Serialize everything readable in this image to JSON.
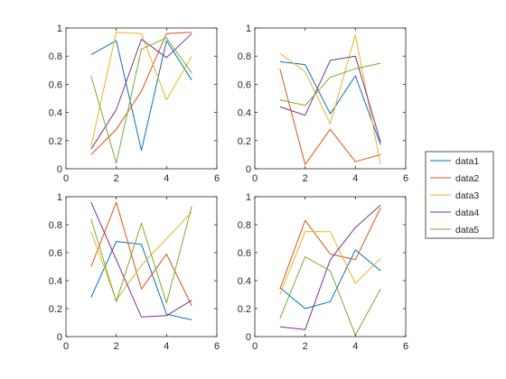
{
  "colors": {
    "data1": "#0072BD",
    "data2": "#D95319",
    "data3": "#EDB120",
    "data4": "#7E2F8E",
    "data5": "#77AC30",
    "axes": "#262626",
    "background": "#ffffff"
  },
  "legend": {
    "placement": "right-center",
    "entries": [
      "data1",
      "data2",
      "data3",
      "data4",
      "data5"
    ]
  },
  "chart_data": [
    {
      "type": "line",
      "panel": "top-left",
      "title": "",
      "xlabel": "",
      "ylabel": "",
      "xlim": [
        0,
        6
      ],
      "ylim": [
        0,
        1
      ],
      "xticks": [
        "0",
        "2",
        "4",
        "6"
      ],
      "yticks": [
        "0",
        "0.2",
        "0.4",
        "0.6",
        "0.8",
        "1"
      ],
      "grid": false,
      "x": [
        1,
        2,
        3,
        4,
        5
      ],
      "series": [
        {
          "name": "data1",
          "values": [
            0.81,
            0.91,
            0.13,
            0.91,
            0.63
          ]
        },
        {
          "name": "data2",
          "values": [
            0.1,
            0.28,
            0.55,
            0.96,
            0.97
          ]
        },
        {
          "name": "data3",
          "values": [
            0.16,
            0.97,
            0.96,
            0.49,
            0.8
          ]
        },
        {
          "name": "data4",
          "values": [
            0.14,
            0.42,
            0.92,
            0.79,
            0.96
          ]
        },
        {
          "name": "data5",
          "values": [
            0.66,
            0.04,
            0.85,
            0.93,
            0.68
          ]
        }
      ]
    },
    {
      "type": "line",
      "panel": "top-right",
      "title": "",
      "xlabel": "",
      "ylabel": "",
      "xlim": [
        0,
        6
      ],
      "ylim": [
        0,
        1
      ],
      "xticks": [
        "0",
        "2",
        "4",
        "6"
      ],
      "yticks": [
        "0",
        "0.2",
        "0.4",
        "0.6",
        "0.8",
        "1"
      ],
      "grid": false,
      "x": [
        1,
        2,
        3,
        4,
        5
      ],
      "series": [
        {
          "name": "data1",
          "values": [
            0.76,
            0.74,
            0.39,
            0.66,
            0.17
          ]
        },
        {
          "name": "data2",
          "values": [
            0.71,
            0.03,
            0.28,
            0.05,
            0.1
          ]
        },
        {
          "name": "data3",
          "values": [
            0.82,
            0.69,
            0.32,
            0.95,
            0.03
          ]
        },
        {
          "name": "data4",
          "values": [
            0.44,
            0.38,
            0.77,
            0.8,
            0.19
          ]
        },
        {
          "name": "data5",
          "values": [
            0.49,
            0.45,
            0.65,
            0.71,
            0.75
          ]
        }
      ]
    },
    {
      "type": "line",
      "panel": "bottom-left",
      "title": "",
      "xlabel": "",
      "ylabel": "",
      "xlim": [
        0,
        6
      ],
      "ylim": [
        0,
        1
      ],
      "xticks": [
        "0",
        "2",
        "4",
        "6"
      ],
      "yticks": [
        "0",
        "0.2",
        "0.4",
        "0.6",
        "0.8",
        "1"
      ],
      "grid": false,
      "x": [
        1,
        2,
        3,
        4,
        5
      ],
      "series": [
        {
          "name": "data1",
          "values": [
            0.28,
            0.68,
            0.66,
            0.16,
            0.12
          ]
        },
        {
          "name": "data2",
          "values": [
            0.5,
            0.96,
            0.34,
            0.59,
            0.22
          ]
        },
        {
          "name": "data3",
          "values": [
            0.75,
            0.26,
            0.51,
            0.7,
            0.89
          ]
        },
        {
          "name": "data4",
          "values": [
            0.96,
            0.55,
            0.14,
            0.15,
            0.26
          ]
        },
        {
          "name": "data5",
          "values": [
            0.84,
            0.25,
            0.81,
            0.24,
            0.93
          ]
        }
      ]
    },
    {
      "type": "line",
      "panel": "bottom-right",
      "title": "",
      "xlabel": "",
      "ylabel": "",
      "xlim": [
        0,
        6
      ],
      "ylim": [
        0,
        1
      ],
      "xticks": [
        "0",
        "2",
        "4",
        "6"
      ],
      "yticks": [
        "0",
        "0.2",
        "0.4",
        "0.6",
        "0.8",
        "1"
      ],
      "grid": false,
      "x": [
        1,
        2,
        3,
        4,
        5
      ],
      "series": [
        {
          "name": "data1",
          "values": [
            0.35,
            0.2,
            0.25,
            0.62,
            0.47
          ]
        },
        {
          "name": "data2",
          "values": [
            0.34,
            0.83,
            0.59,
            0.55,
            0.92
          ]
        },
        {
          "name": "data3",
          "values": [
            0.3,
            0.75,
            0.75,
            0.38,
            0.56
          ]
        },
        {
          "name": "data4",
          "values": [
            0.07,
            0.05,
            0.55,
            0.78,
            0.94
          ]
        },
        {
          "name": "data5",
          "values": [
            0.13,
            0.57,
            0.47,
            0.01,
            0.34
          ]
        }
      ]
    }
  ]
}
